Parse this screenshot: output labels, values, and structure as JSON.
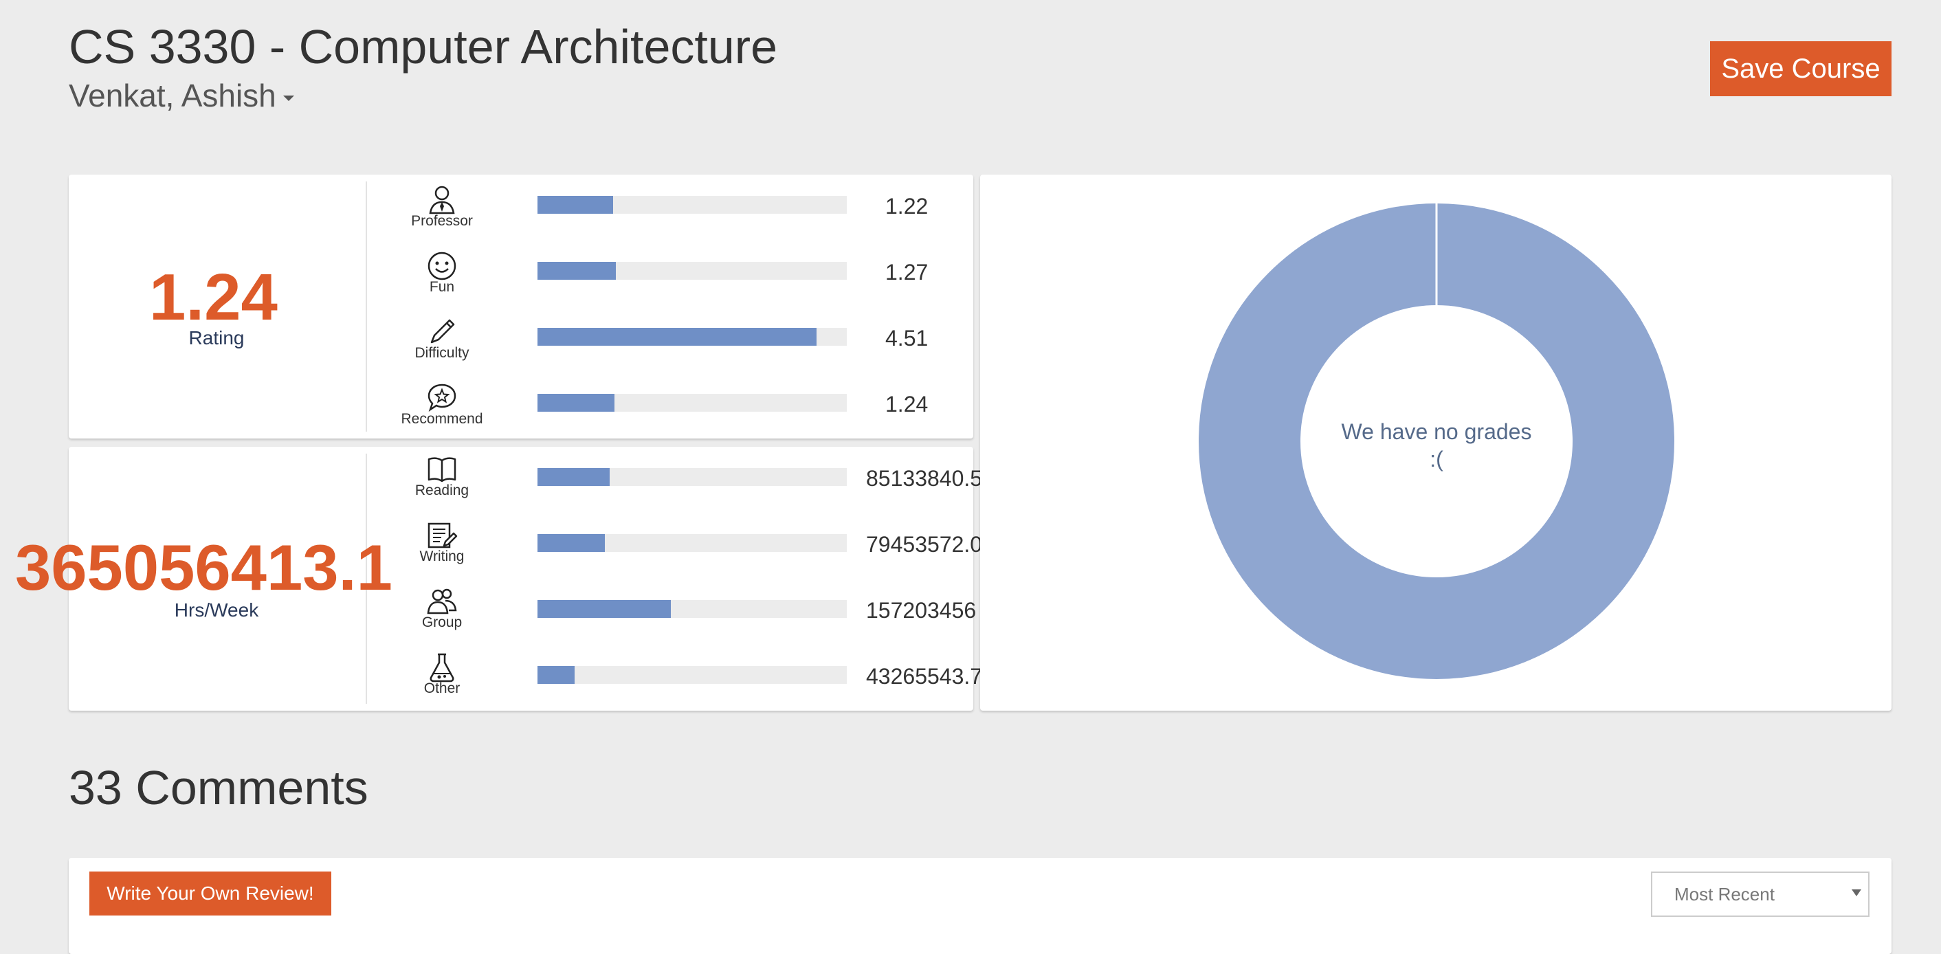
{
  "course": {
    "title": "CS 3330 - Computer Architecture",
    "professor": "Venkat, Ashish",
    "save_label": "Save Course"
  },
  "ratings": {
    "overall_value": "1.24",
    "overall_label": "Rating",
    "metrics": [
      {
        "name": "Professor",
        "icon": "professor-icon",
        "value": "1.22",
        "fraction": 0.244
      },
      {
        "name": "Fun",
        "icon": "smiley-icon",
        "value": "1.27",
        "fraction": 0.254
      },
      {
        "name": "Difficulty",
        "icon": "pencil-icon",
        "value": "4.51",
        "fraction": 0.902
      },
      {
        "name": "Recommend",
        "icon": "speech-star-icon",
        "value": "1.24",
        "fraction": 0.248
      }
    ]
  },
  "workload": {
    "overall_value": "365056413.1",
    "overall_label": "Hrs/Week",
    "metrics": [
      {
        "name": "Reading",
        "icon": "book-icon",
        "value": "85133840.5",
        "fraction": 0.233
      },
      {
        "name": "Writing",
        "icon": "writing-icon",
        "value": "79453572.0",
        "fraction": 0.218
      },
      {
        "name": "Group",
        "icon": "group-icon",
        "value": "157203456",
        "fraction": 0.431
      },
      {
        "name": "Other",
        "icon": "flask-icon",
        "value": "43265543.7",
        "fraction": 0.119
      }
    ]
  },
  "grades": {
    "empty_line1": "We have no grades",
    "empty_line2": ":("
  },
  "comments": {
    "heading": "33 Comments",
    "write_label": "Write Your Own Review!",
    "sort_value": "Most Recent"
  },
  "colors": {
    "accent": "#dd5b2a",
    "bar": "#6f8fc6",
    "donut": "#8fa6d0"
  }
}
